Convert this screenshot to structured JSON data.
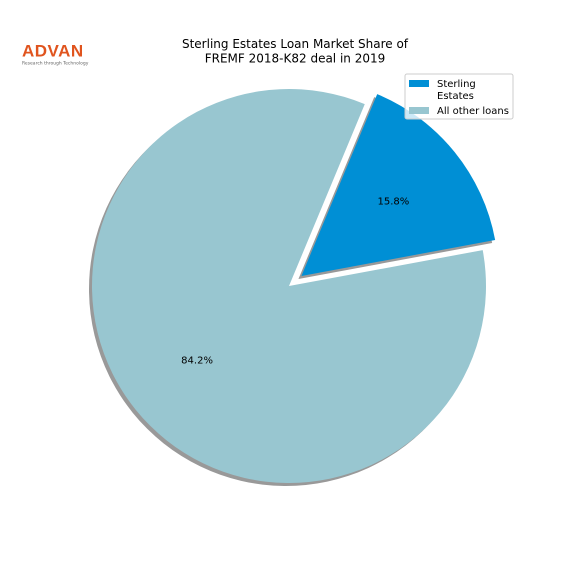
{
  "logo": {
    "text": "ADVAN",
    "tagline": "Research through Technology"
  },
  "chart_data": {
    "type": "pie",
    "title": "Sterling Estates Loan Market Share of\nFREMF 2018-K82 deal in 2019",
    "categories": [
      "Sterling\nEstates",
      "All other loans"
    ],
    "values": [
      15.8,
      84.2
    ],
    "value_labels": [
      "15.8%",
      "84.2%"
    ],
    "colors": [
      "#008fd5",
      "#98c6d0"
    ],
    "legend": "upper right"
  }
}
